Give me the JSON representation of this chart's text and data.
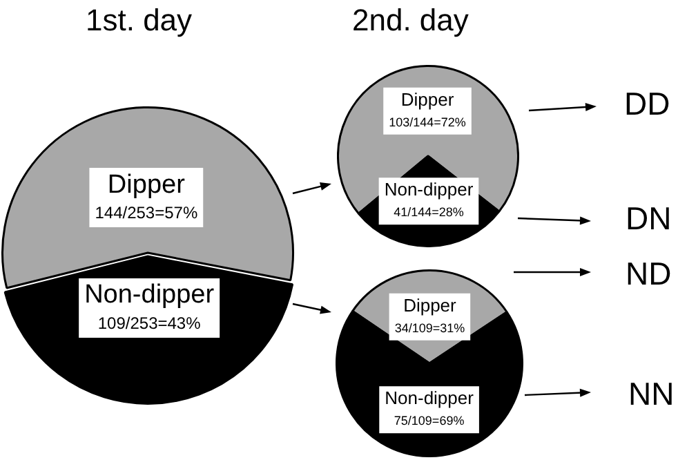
{
  "chart_data": [
    {
      "type": "pie",
      "title": "1st. day",
      "categories": [
        "Dipper",
        "Non-dipper"
      ],
      "values": [
        144,
        109
      ],
      "value_labels": [
        "144/253=57%",
        "109/253=43%"
      ],
      "colors": [
        "#a8a8a8",
        "#000000"
      ],
      "legend": false
    },
    {
      "type": "pie",
      "title": "2nd. day",
      "categories": [
        "Dipper",
        "Non-dipper"
      ],
      "values": [
        103,
        41
      ],
      "value_labels": [
        "103/144=72%",
        "41/144=28%"
      ],
      "colors": [
        "#a8a8a8",
        "#000000"
      ],
      "legend": false,
      "annotations": [
        "DD",
        "DN"
      ]
    },
    {
      "type": "pie",
      "categories": [
        "Dipper",
        "Non-dipper"
      ],
      "values": [
        34,
        75
      ],
      "value_labels": [
        "34/109=31%",
        "75/109=69%"
      ],
      "colors": [
        "#a8a8a8",
        "#000000"
      ],
      "legend": false,
      "annotations": [
        "ND",
        "NN"
      ]
    }
  ]
}
